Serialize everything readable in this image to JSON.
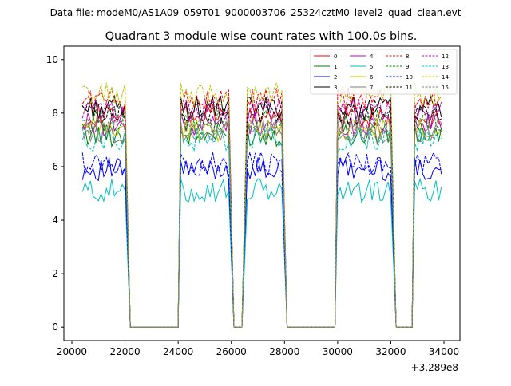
{
  "suptitle": "Data file: modeM0/AS1A09_059T01_9000003706_25324cztM0_level2_quad_clean.evt",
  "chart_data": {
    "type": "line",
    "title": "Quadrant 3 module wise count rates with 100.0s bins.",
    "xlabel": "",
    "ylabel": "",
    "x_offset_label": "+3.289e8",
    "xlim": [
      19700,
      34600
    ],
    "ylim": [
      -0.5,
      10.5
    ],
    "xticks": [
      20000,
      22000,
      24000,
      26000,
      28000,
      30000,
      32000,
      34000
    ],
    "xtick_labels": [
      "20000",
      "22000",
      "24000",
      "26000",
      "28000",
      "30000",
      "32000",
      "34000"
    ],
    "yticks": [
      0,
      2,
      4,
      6,
      8,
      10
    ],
    "ytick_labels": [
      "0",
      "2",
      "4",
      "6",
      "8",
      "10"
    ],
    "legend_position": "top-right",
    "legend_columns": 4,
    "segments": [
      {
        "x_start": 20400,
        "x_end": 22000,
        "zero_start": 22200,
        "zero_end": 24000
      },
      {
        "x_start": 24100,
        "x_end": 25900,
        "zero_start": 26100,
        "zero_end": 26400
      },
      {
        "x_start": 26600,
        "x_end": 27900,
        "zero_start": 28100,
        "zero_end": 29900
      },
      {
        "x_start": 30000,
        "x_end": 32000,
        "zero_start": 32200,
        "zero_end": 32800
      },
      {
        "x_start": 32900,
        "x_end": 33900,
        "zero_start": null,
        "zero_end": null
      }
    ],
    "series": [
      {
        "name": "0",
        "color": "#ff0000",
        "dash": "solid",
        "level": 7.9
      },
      {
        "name": "1",
        "color": "#008000",
        "dash": "solid",
        "level": 7.2
      },
      {
        "name": "2",
        "color": "#0000ff",
        "dash": "solid",
        "level": 5.9
      },
      {
        "name": "3",
        "color": "#000000",
        "dash": "solid",
        "level": 8.2
      },
      {
        "name": "4",
        "color": "#bf00bf",
        "dash": "solid",
        "level": 7.6
      },
      {
        "name": "5",
        "color": "#00bfbf",
        "dash": "solid",
        "level": 5.1
      },
      {
        "name": "6",
        "color": "#bfbf00",
        "dash": "solid",
        "level": 7.4
      },
      {
        "name": "7",
        "color": "#808080",
        "dash": "solid",
        "level": 7.3
      },
      {
        "name": "8",
        "color": "#ff0000",
        "dash": "dashed",
        "level": 8.5
      },
      {
        "name": "9",
        "color": "#008000",
        "dash": "dashed",
        "level": 7.7
      },
      {
        "name": "10",
        "color": "#0000ff",
        "dash": "dashed",
        "level": 6.1
      },
      {
        "name": "11",
        "color": "#000000",
        "dash": "dashed",
        "level": 8.0
      },
      {
        "name": "12",
        "color": "#bf00bf",
        "dash": "dashed",
        "level": 8.1
      },
      {
        "name": "13",
        "color": "#00bfbf",
        "dash": "dashed",
        "level": 7.0
      },
      {
        "name": "14",
        "color": "#bfbf00",
        "dash": "dashed",
        "level": 8.7
      },
      {
        "name": "15",
        "color": "#808080",
        "dash": "dashed",
        "level": 7.5
      }
    ]
  }
}
